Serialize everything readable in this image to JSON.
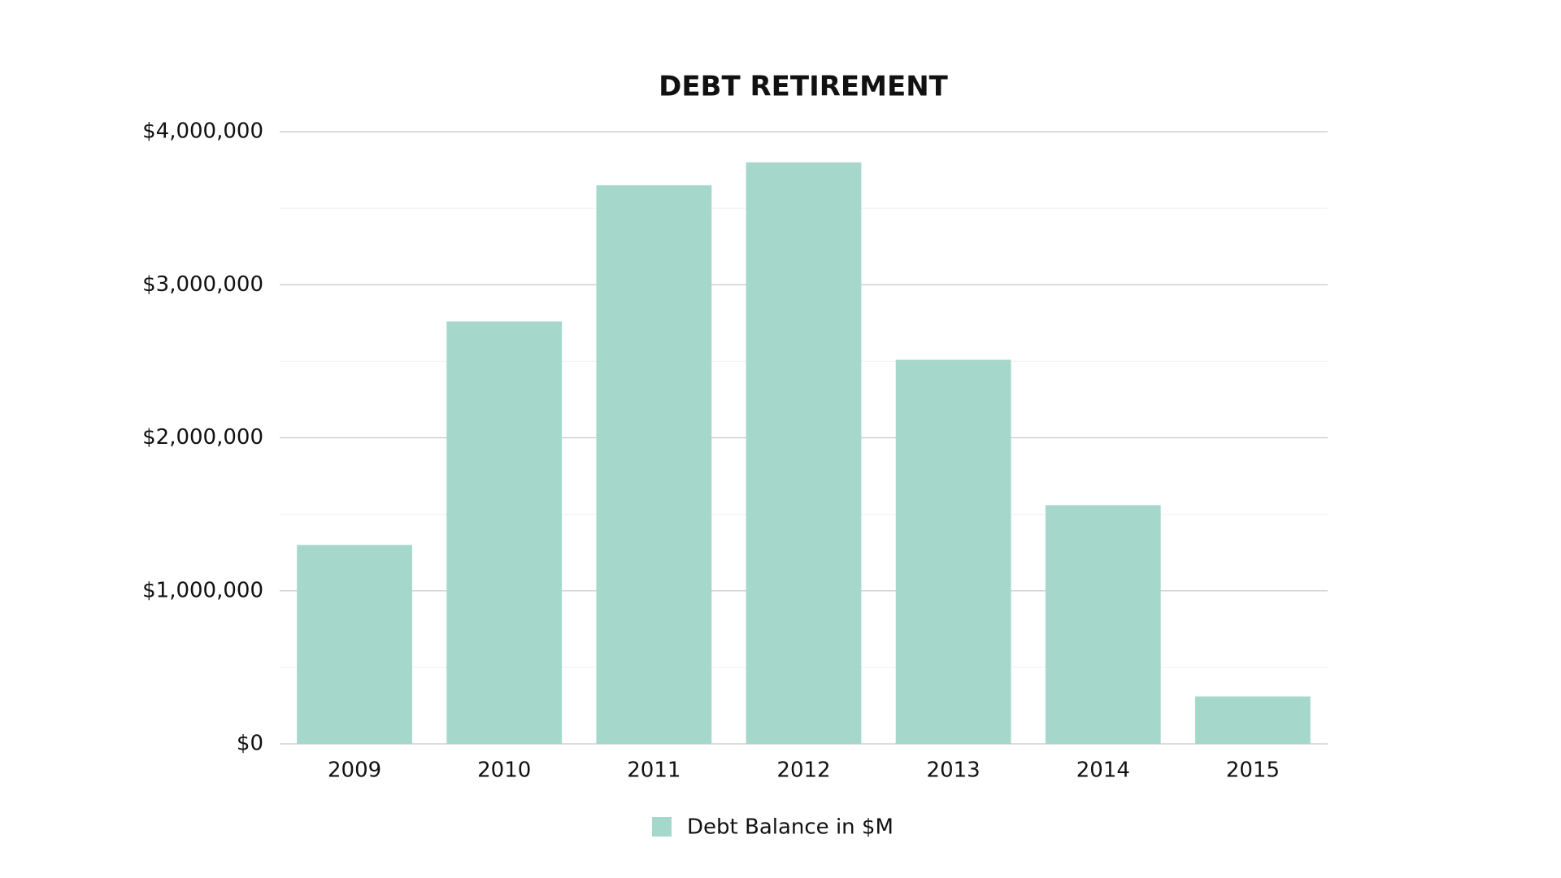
{
  "chart_data": {
    "type": "bar",
    "title": "DEBT RETIREMENT",
    "categories": [
      "2009",
      "2010",
      "2011",
      "2012",
      "2013",
      "2014",
      "2015"
    ],
    "series": [
      {
        "name": "Debt Balance in $M",
        "color": "#a5d8cb",
        "values": [
          1300000,
          2760000,
          3650000,
          3800000,
          2510000,
          1560000,
          310000
        ]
      }
    ],
    "ylim": [
      0,
      4000000
    ],
    "yticks": [
      {
        "value": 0,
        "label": "$0"
      },
      {
        "value": 1000000,
        "label": "$1,000,000"
      },
      {
        "value": 2000000,
        "label": "$2,000,000"
      },
      {
        "value": 3000000,
        "label": "$3,000,000"
      },
      {
        "value": 4000000,
        "label": "$4,000,000"
      }
    ],
    "minor_yticks": [
      500000,
      1500000,
      2500000,
      3500000
    ],
    "grid": true,
    "legend": "bottom"
  }
}
